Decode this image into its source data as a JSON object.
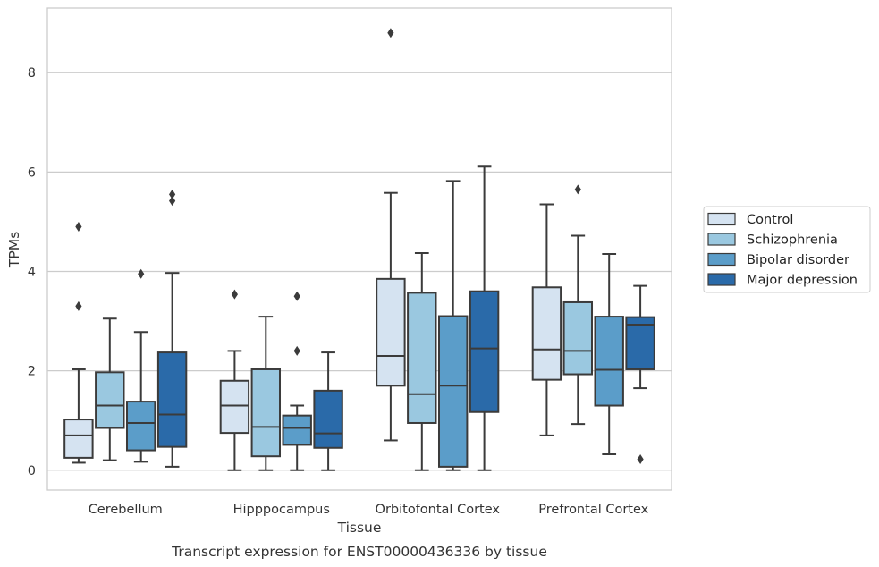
{
  "chart_data": {
    "type": "box",
    "xlabel": "Tissue",
    "ylabel": "TPMs",
    "caption": "Transcript expression for ENST00000436336 by tissue",
    "ylim": [
      -0.4,
      9.3
    ],
    "yticks": [
      0,
      2,
      4,
      6,
      8
    ],
    "grid": "horizontal",
    "legend_position": "outside-right",
    "categories": [
      "Cerebellum",
      "Hipppocampus",
      "Orbitofontal Cortex",
      "Prefrontal Cortex"
    ],
    "series": [
      {
        "name": "Control",
        "color": "#d5e3f1",
        "boxes": [
          {
            "whisker_low": 0.15,
            "q1": 0.25,
            "median": 0.7,
            "q3": 1.02,
            "whisker_high": 2.03,
            "outliers": [
              3.3,
              4.9
            ]
          },
          {
            "whisker_low": 0.0,
            "q1": 0.75,
            "median": 1.3,
            "q3": 1.8,
            "whisker_high": 2.4,
            "outliers": [
              3.54
            ]
          },
          {
            "whisker_low": 0.6,
            "q1": 1.7,
            "median": 2.3,
            "q3": 3.85,
            "whisker_high": 5.58,
            "outliers": [
              8.8
            ]
          },
          {
            "whisker_low": 0.7,
            "q1": 1.82,
            "median": 2.43,
            "q3": 3.68,
            "whisker_high": 5.35,
            "outliers": []
          }
        ]
      },
      {
        "name": "Schizophrenia",
        "color": "#9ac8e0",
        "boxes": [
          {
            "whisker_low": 0.2,
            "q1": 0.85,
            "median": 1.3,
            "q3": 1.97,
            "whisker_high": 3.05,
            "outliers": []
          },
          {
            "whisker_low": 0.0,
            "q1": 0.28,
            "median": 0.87,
            "q3": 2.03,
            "whisker_high": 3.09,
            "outliers": []
          },
          {
            "whisker_low": 0.0,
            "q1": 0.95,
            "median": 1.53,
            "q3": 3.57,
            "whisker_high": 4.37,
            "outliers": []
          },
          {
            "whisker_low": 0.93,
            "q1": 1.93,
            "median": 2.4,
            "q3": 3.38,
            "whisker_high": 4.72,
            "outliers": [
              5.65
            ]
          }
        ]
      },
      {
        "name": "Bipolar disorder",
        "color": "#5b9dc9",
        "boxes": [
          {
            "whisker_low": 0.17,
            "q1": 0.4,
            "median": 0.95,
            "q3": 1.38,
            "whisker_high": 2.78,
            "outliers": [
              3.95
            ]
          },
          {
            "whisker_low": 0.0,
            "q1": 0.51,
            "median": 0.85,
            "q3": 1.1,
            "whisker_high": 1.3,
            "outliers": [
              2.4,
              3.5
            ]
          },
          {
            "whisker_low": 0.0,
            "q1": 0.07,
            "median": 1.7,
            "q3": 3.1,
            "whisker_high": 5.82,
            "outliers": []
          },
          {
            "whisker_low": 0.32,
            "q1": 1.3,
            "median": 2.02,
            "q3": 3.09,
            "whisker_high": 4.35,
            "outliers": []
          }
        ]
      },
      {
        "name": "Major depression",
        "color": "#2a6aa9",
        "boxes": [
          {
            "whisker_low": 0.07,
            "q1": 0.47,
            "median": 1.12,
            "q3": 2.37,
            "whisker_high": 3.97,
            "outliers": [
              5.42,
              5.55
            ]
          },
          {
            "whisker_low": 0.0,
            "q1": 0.45,
            "median": 0.74,
            "q3": 1.6,
            "whisker_high": 2.37,
            "outliers": []
          },
          {
            "whisker_low": 0.0,
            "q1": 1.17,
            "median": 2.45,
            "q3": 3.6,
            "whisker_high": 6.11,
            "outliers": []
          },
          {
            "whisker_low": 1.65,
            "q1": 2.03,
            "median": 2.93,
            "q3": 3.08,
            "whisker_high": 3.71,
            "outliers": [
              0.22
            ]
          }
        ]
      }
    ]
  },
  "colors": {
    "grid": "#cccccc",
    "frame": "#cccccc",
    "box_edge": "#3b3b3b",
    "background": "#ffffff"
  }
}
